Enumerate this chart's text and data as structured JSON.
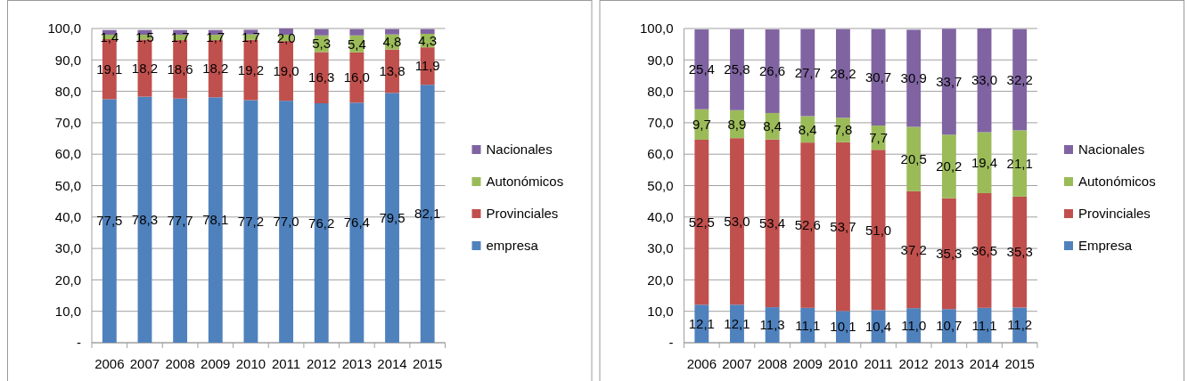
{
  "chart_data": [
    {
      "type": "bar",
      "stacked": true,
      "categories": [
        "2006",
        "2007",
        "2008",
        "2009",
        "2010",
        "2011",
        "2012",
        "2013",
        "2014",
        "2015"
      ],
      "ylim": [
        0,
        100
      ],
      "yticks": [
        {
          "value": 0,
          "label": "-"
        },
        {
          "value": 10,
          "label": "10,0"
        },
        {
          "value": 20,
          "label": "20,0"
        },
        {
          "value": 30,
          "label": "30,0"
        },
        {
          "value": 40,
          "label": "40,0"
        },
        {
          "value": 50,
          "label": "50,0"
        },
        {
          "value": 60,
          "label": "60,0"
        },
        {
          "value": 70,
          "label": "70,0"
        },
        {
          "value": 80,
          "label": "80,0"
        },
        {
          "value": 90,
          "label": "90,0"
        },
        {
          "value": 100,
          "label": "100,0"
        }
      ],
      "grid": "y",
      "legend": "right",
      "series": [
        {
          "name": "empresa",
          "color": "#4f81bd",
          "values": [
            77.5,
            78.3,
            77.7,
            78.1,
            77.2,
            77.0,
            76.2,
            76.4,
            79.5,
            82.1
          ],
          "value_labels": [
            "77,5",
            "78,3",
            "77,7",
            "78,1",
            "77,2",
            "77,0",
            "76,2",
            "76,4",
            "79,5",
            "82,1"
          ]
        },
        {
          "name": "Provinciales",
          "color": "#c0504d",
          "values": [
            19.1,
            18.2,
            18.6,
            18.2,
            19.2,
            19.0,
            16.3,
            16.0,
            13.8,
            11.9
          ],
          "value_labels": [
            "19,1",
            "18,2",
            "18,6",
            "18,2",
            "19,2",
            "19,0",
            "16,3",
            "16,0",
            "13,8",
            "11,9"
          ]
        },
        {
          "name": "Autonómicos",
          "color": "#9bbb59",
          "values": [
            1.4,
            1.5,
            1.7,
            1.7,
            1.7,
            2.0,
            5.3,
            5.4,
            4.8,
            4.3
          ],
          "value_labels": [
            "1,4",
            "1,5",
            "1,7",
            "1,7",
            "1,7",
            "2,0",
            "5,3",
            "5,4",
            "4,8",
            "4,3"
          ]
        },
        {
          "name": "Nacionales",
          "color": "#8064a2",
          "values": [
            1.5,
            1.5,
            1.5,
            1.5,
            1.5,
            2.0,
            2.0,
            2.0,
            1.7,
            1.5
          ],
          "value_labels": [
            null,
            null,
            null,
            null,
            null,
            null,
            null,
            null,
            null,
            null
          ]
        }
      ]
    },
    {
      "type": "bar",
      "stacked": true,
      "categories": [
        "2006",
        "2007",
        "2008",
        "2009",
        "2010",
        "2011",
        "2012",
        "2013",
        "2014",
        "2015"
      ],
      "ylim": [
        0,
        100
      ],
      "yticks": [
        {
          "value": 0,
          "label": "-"
        },
        {
          "value": 10,
          "label": "10,0"
        },
        {
          "value": 20,
          "label": "20,0"
        },
        {
          "value": 30,
          "label": "30,0"
        },
        {
          "value": 40,
          "label": "40,0"
        },
        {
          "value": 50,
          "label": "50,0"
        },
        {
          "value": 60,
          "label": "60,0"
        },
        {
          "value": 70,
          "label": "70,0"
        },
        {
          "value": 80,
          "label": "80,0"
        },
        {
          "value": 90,
          "label": "90,0"
        },
        {
          "value": 100,
          "label": "100,0"
        }
      ],
      "grid": "y",
      "legend": "right",
      "series": [
        {
          "name": "Empresa",
          "color": "#4f81bd",
          "values": [
            12.1,
            12.1,
            11.3,
            11.1,
            10.1,
            10.4,
            11.0,
            10.7,
            11.1,
            11.2
          ],
          "value_labels": [
            "12,1",
            "12,1",
            "11,3",
            "11,1",
            "10,1",
            "10,4",
            "11,0",
            "10,7",
            "11,1",
            "11,2"
          ]
        },
        {
          "name": "Provinciales",
          "color": "#c0504d",
          "values": [
            52.5,
            53.0,
            53.4,
            52.6,
            53.7,
            51.0,
            37.2,
            35.3,
            36.5,
            35.3
          ],
          "value_labels": [
            "52,5",
            "53,0",
            "53,4",
            "52,6",
            "53,7",
            "51,0",
            "37,2",
            "35,3",
            "36,5",
            "35,3"
          ]
        },
        {
          "name": "Autonómicos",
          "color": "#9bbb59",
          "values": [
            9.7,
            8.9,
            8.4,
            8.4,
            7.8,
            7.7,
            20.5,
            20.2,
            19.4,
            21.1
          ],
          "value_labels": [
            "9,7",
            "8,9",
            "8,4",
            "8,4",
            "7,8",
            "7,7",
            "20,5",
            "20,2",
            "19,4",
            "21,1"
          ]
        },
        {
          "name": "Nacionales",
          "color": "#8064a2",
          "values": [
            25.4,
            25.8,
            26.6,
            27.7,
            28.2,
            30.7,
            30.9,
            33.7,
            33.0,
            32.2
          ],
          "value_labels": [
            "25,4",
            "25,8",
            "26,6",
            "27,7",
            "28,2",
            "30,7",
            "30,9",
            "33,7",
            "33,0",
            "32,2"
          ]
        }
      ]
    }
  ]
}
